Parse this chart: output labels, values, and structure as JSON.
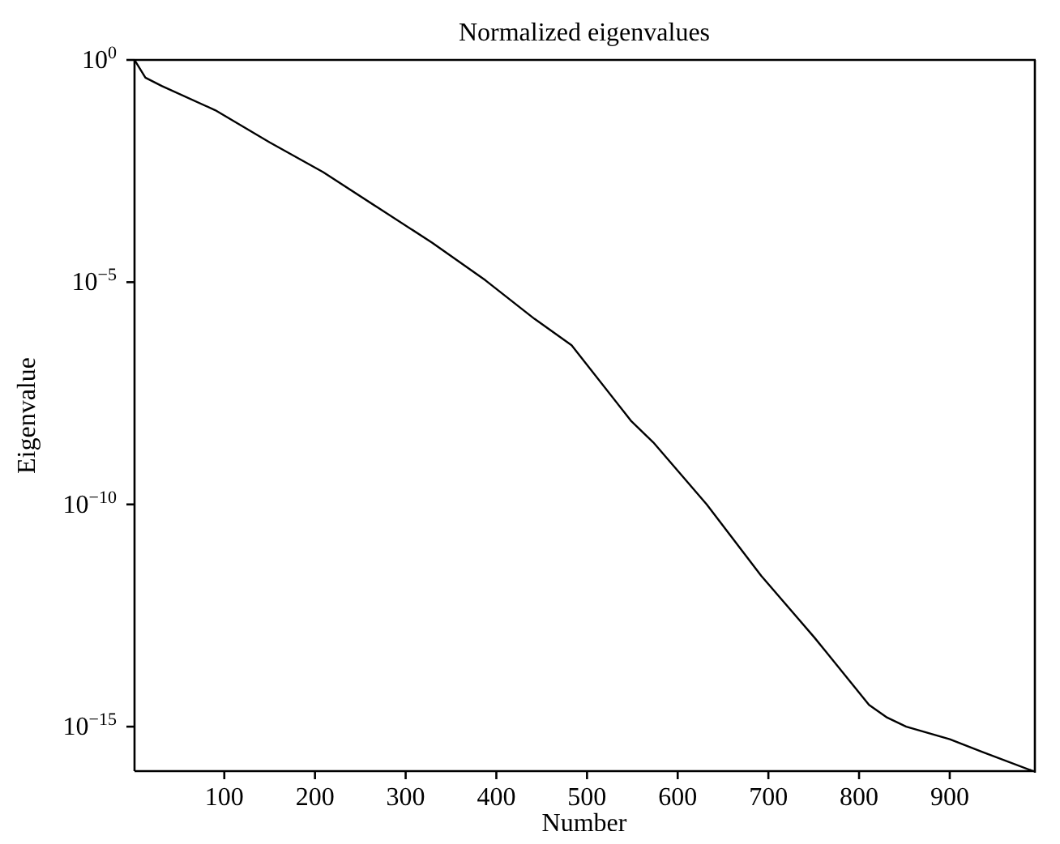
{
  "chart_data": {
    "type": "line",
    "title": "Normalized eigenvalues",
    "xlabel": "Number",
    "ylabel": "Eigenvalue",
    "x": [
      1,
      13,
      31,
      90,
      150,
      209,
      269,
      329,
      388,
      442,
      483,
      549,
      573,
      632,
      692,
      751,
      811,
      831,
      852,
      900,
      936,
      992
    ],
    "series": [
      {
        "color": "#000000",
        "values": [
          1,
          0.4,
          0.26,
          0.074,
          0.014,
          0.003,
          0.00048,
          7.8e-05,
          1.1e-05,
          1.5e-06,
          3.8e-07,
          7.4e-09,
          2.5e-09,
          1e-10,
          2.5e-12,
          1e-13,
          3.1e-15,
          1.6e-15,
          1e-15,
          5.2e-16,
          2.7e-16,
          1e-16
        ]
      }
    ],
    "xlim": [
      1,
      993
    ],
    "xticks": [
      100,
      200,
      300,
      400,
      500,
      600,
      700,
      800,
      900
    ],
    "ylim": [
      1e-16,
      1
    ],
    "yticks": [
      {
        "value": 1,
        "label": "10$^{0}$"
      },
      {
        "value": 1e-05,
        "label": "10$^{−5}$"
      },
      {
        "value": 1e-10,
        "label": "10$^{−10}$"
      },
      {
        "value": 1e-15,
        "label": "10$^{−15}$"
      }
    ],
    "log": "y",
    "grid": false,
    "marker": "none",
    "line_style": "solid"
  }
}
